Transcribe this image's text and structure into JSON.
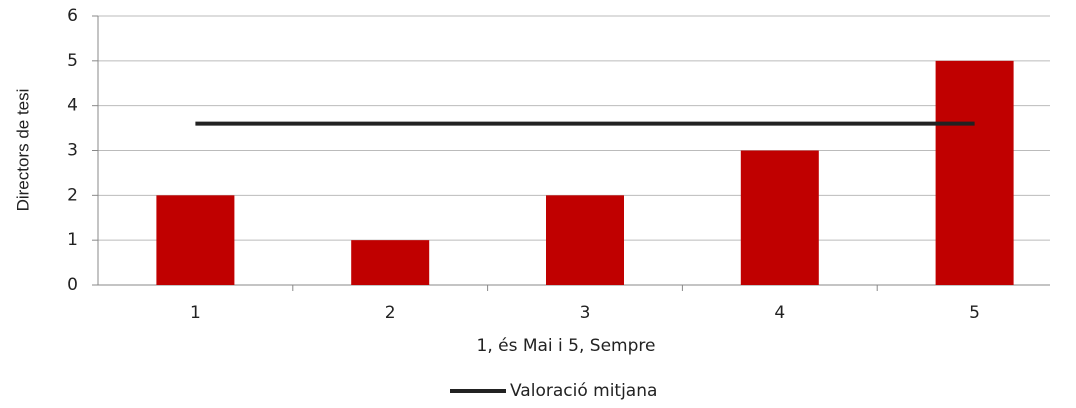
{
  "chart_data": {
    "type": "bar",
    "categories": [
      "1",
      "2",
      "3",
      "4",
      "5"
    ],
    "values": [
      2,
      1,
      2,
      3,
      5
    ],
    "color": "#c00000",
    "series": [
      {
        "name": "Valoració mitjana",
        "type": "line",
        "color": "#222222",
        "values": [
          3.6,
          3.6,
          3.6,
          3.6,
          3.6
        ]
      }
    ],
    "x_label": "1, és Mai i 5, Sempre",
    "y_label": "Directors de tesi",
    "ylim": [
      0,
      6
    ],
    "yticks": [
      0,
      1,
      2,
      3,
      4,
      5,
      6
    ],
    "grid": true,
    "legend": "bottom"
  }
}
